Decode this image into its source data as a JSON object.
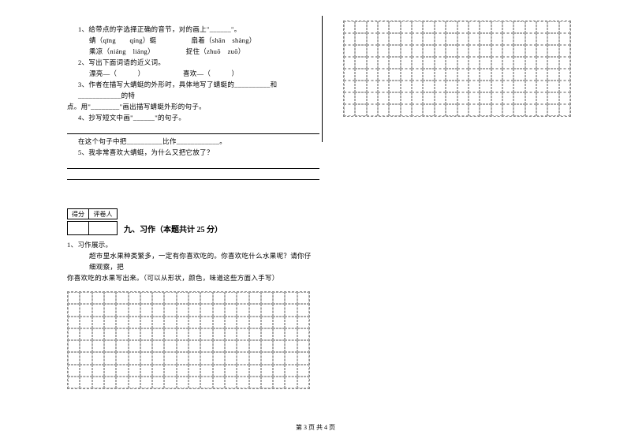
{
  "questions": {
    "q1": {
      "num": "1、",
      "text": "给带点的字选择正确的音节，对的画上\"______\"。",
      "line1a": "蜻（qīng　　qíng）蜓",
      "line1b": "扇着（shān　shàng）",
      "line2a": "乘凉（niáng　liáng）",
      "line2b": "捉住（zhuō　zuō）"
    },
    "q2": {
      "num": "2、",
      "text": "写出下面词语的近义词。",
      "words": "漂亮—（　　　）　　　　　　喜欢—（　　　）"
    },
    "q3": {
      "num": "3、",
      "text_a": "作者在描写大蜻蜓的外形时，具体地写了蜻蜓的__________和____________的特",
      "text_b": "点。用\"________\"画出描写蜻蜓外形的句子。"
    },
    "q4": {
      "num": "4、",
      "text": "抄写短文中画\"______\"的句子。",
      "sentence": "在这个句子中把__________比作____________。"
    },
    "q5": {
      "num": "5、",
      "text": "我非常喜欢大蜻蜓，为什么又把它放了？"
    }
  },
  "scorebox": {
    "col1": "得分",
    "col2": "评卷人"
  },
  "section": {
    "title": "九、习作（本题共计 25 分）"
  },
  "writing": {
    "num": "1、",
    "title": "习作展示。",
    "prompt_a": "超市里水果种类繁多，一定有你喜欢吃的。你喜欢吃什么水果呢？请你仔　细观察，把",
    "prompt_b": "你喜欢吃的水果写出来。（可以从形状，颜色，味道这些方面入手写）"
  },
  "footer": "第 3 页 共 4 页",
  "grid": {
    "cols": 20,
    "rows": 8,
    "border_color": "#aaaaaa",
    "border_style": "dashed"
  }
}
